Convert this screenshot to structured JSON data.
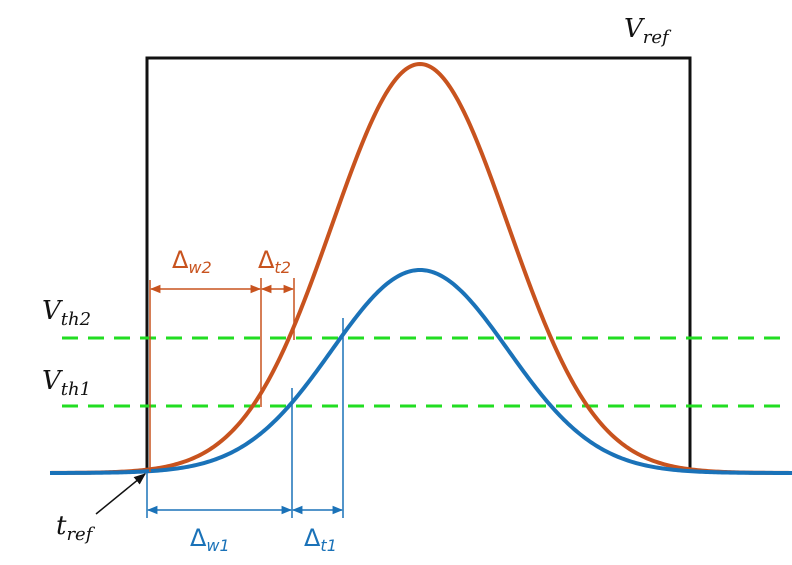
{
  "labels": {
    "vref": {
      "base": "V",
      "sub": "ref"
    },
    "vth2": {
      "base": "V",
      "sub": "th2"
    },
    "vth1": {
      "base": "V",
      "sub": "th1"
    },
    "tref": {
      "base": "t",
      "sub": "ref"
    },
    "dw2": {
      "base": "Δ",
      "sub": "w2"
    },
    "dt2": {
      "base": "Δ",
      "sub": "t2"
    },
    "dw1": {
      "base": "Δ",
      "sub": "w1"
    },
    "dt1": {
      "base": "Δ",
      "sub": "t1"
    }
  },
  "colors": {
    "orange": "#c8531e",
    "blue": "#1a72b8",
    "green": "#22dd22",
    "black": "#111111"
  }
}
